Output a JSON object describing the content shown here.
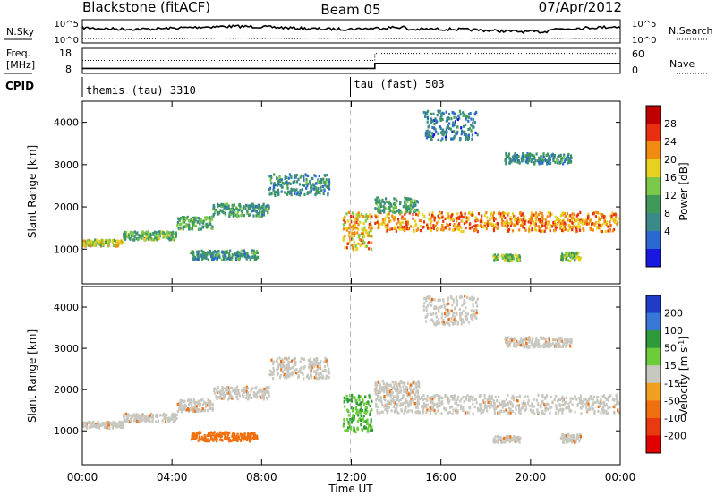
{
  "header": {
    "station": "Blackstone (fitACF)",
    "beam": "Beam 05",
    "date": "07/Apr/2012"
  },
  "noise_panel": {
    "left_label": "N.Sky",
    "right_label": "N.Search",
    "left_ticks": [
      "10^5",
      "10^0"
    ],
    "right_ticks": [
      "10^5",
      "10^0"
    ]
  },
  "freq_panel": {
    "left_label_1": "Freq.",
    "left_label_2": "[MHz]",
    "right_label": "Nave",
    "left_ticks": [
      "18",
      "8"
    ],
    "right_ticks": [
      "60",
      "0"
    ],
    "freq_before_mhz": 10,
    "freq_after_mhz": 12,
    "nave_before": 31,
    "nave_after": 48,
    "change_hour": 13.05
  },
  "cpid": {
    "label": "CPID",
    "modes": [
      {
        "name": "themis (tau) 3310",
        "start_hour": 0
      },
      {
        "name": "tau (fast) 503",
        "start_hour": 12.0
      }
    ]
  },
  "chart_data": [
    {
      "type": "heatmap",
      "title": "",
      "ylabel": "Slant Range [km]",
      "xlabel": "",
      "xlim": [
        0,
        24
      ],
      "ylim": [
        180,
        4500
      ],
      "yticks": [
        "1000",
        "2000",
        "3000",
        "4000"
      ],
      "colorbar_label": "Power [dB]",
      "colorbar_ticks": [
        "4",
        "8",
        "12",
        "16",
        "20",
        "24",
        "28"
      ],
      "colorbar_range": [
        0,
        32
      ],
      "colors": [
        "#1818e0",
        "#2a6ad0",
        "#3a8a8a",
        "#3f9a5a",
        "#7cc84a",
        "#e8d020",
        "#f08a10",
        "#e83010",
        "#c00000"
      ],
      "echo_bands": [
        {
          "t0": 0.0,
          "t1": 1.8,
          "r0": 1100,
          "r1": 1250,
          "power": 18
        },
        {
          "t0": 1.8,
          "t1": 4.2,
          "r0": 1250,
          "r1": 1450,
          "power": 14
        },
        {
          "t0": 4.2,
          "t1": 5.8,
          "r0": 1500,
          "r1": 1800,
          "power": 13
        },
        {
          "t0": 5.8,
          "t1": 8.3,
          "r0": 1800,
          "r1": 2100,
          "power": 11
        },
        {
          "t0": 8.3,
          "t1": 11.0,
          "r0": 2300,
          "r1": 2800,
          "power": 10
        },
        {
          "t0": 4.8,
          "t1": 7.8,
          "r0": 780,
          "r1": 1000,
          "power": 11
        },
        {
          "t0": 11.6,
          "t1": 12.9,
          "r0": 1000,
          "r1": 1900,
          "power": 21
        },
        {
          "t0": 13.0,
          "t1": 23.9,
          "r0": 1450,
          "r1": 1900,
          "power": 23
        },
        {
          "t0": 13.0,
          "t1": 15.0,
          "r0": 1900,
          "r1": 2250,
          "power": 12
        },
        {
          "t0": 18.8,
          "t1": 21.8,
          "r0": 3050,
          "r1": 3300,
          "power": 10
        },
        {
          "t0": 15.2,
          "t1": 17.6,
          "r0": 3600,
          "r1": 4300,
          "power": 8
        },
        {
          "t0": 18.3,
          "t1": 19.5,
          "r0": 750,
          "r1": 900,
          "power": 16
        },
        {
          "t0": 21.3,
          "t1": 22.2,
          "r0": 750,
          "r1": 950,
          "power": 16
        }
      ]
    },
    {
      "type": "heatmap",
      "title": "",
      "ylabel": "Slant Range [km]",
      "xlabel": "Time UT",
      "xlim": [
        0,
        24
      ],
      "ylim": [
        180,
        4500
      ],
      "yticks": [
        "1000",
        "2000",
        "3000",
        "4000"
      ],
      "xticks": [
        "00:00",
        "04:00",
        "08:00",
        "12:00",
        "16:00",
        "20:00",
        "00:00"
      ],
      "colorbar_label": "Velocity [m s^-1]",
      "colorbar_ticks": [
        "200",
        "100",
        "50",
        "15",
        "-15",
        "-50",
        "-100",
        "-200"
      ],
      "colors": [
        "#1e3cc8",
        "#3a78d8",
        "#2e9a3a",
        "#6ccc3a",
        "#c8c8c0",
        "#f0a020",
        "#f07010",
        "#e83a10",
        "#e00000"
      ],
      "echo_bands": [
        {
          "t0": 0.0,
          "t1": 1.8,
          "r0": 1100,
          "r1": 1250,
          "velocity": 0
        },
        {
          "t0": 1.8,
          "t1": 4.2,
          "r0": 1250,
          "r1": 1450,
          "velocity": 0
        },
        {
          "t0": 4.2,
          "t1": 5.8,
          "r0": 1500,
          "r1": 1800,
          "velocity": 0
        },
        {
          "t0": 5.8,
          "t1": 8.3,
          "r0": 1800,
          "r1": 2100,
          "velocity": 0
        },
        {
          "t0": 8.3,
          "t1": 11.0,
          "r0": 2300,
          "r1": 2800,
          "velocity": 0
        },
        {
          "t0": 4.8,
          "t1": 7.8,
          "r0": 780,
          "r1": 1000,
          "velocity": -60
        },
        {
          "t0": 11.6,
          "t1": 12.9,
          "r0": 1000,
          "r1": 1900,
          "velocity": 30
        },
        {
          "t0": 13.0,
          "t1": 23.9,
          "r0": 1450,
          "r1": 1900,
          "velocity": 0
        },
        {
          "t0": 13.0,
          "t1": 15.0,
          "r0": 1900,
          "r1": 2250,
          "velocity": 0
        },
        {
          "t0": 18.8,
          "t1": 21.8,
          "r0": 3050,
          "r1": 3300,
          "velocity": 0
        },
        {
          "t0": 15.2,
          "t1": 17.6,
          "r0": 3600,
          "r1": 4300,
          "velocity": 0
        },
        {
          "t0": 18.3,
          "t1": 19.5,
          "r0": 750,
          "r1": 900,
          "velocity": 0
        },
        {
          "t0": 21.3,
          "t1": 22.2,
          "r0": 750,
          "r1": 950,
          "velocity": 0
        }
      ]
    }
  ]
}
